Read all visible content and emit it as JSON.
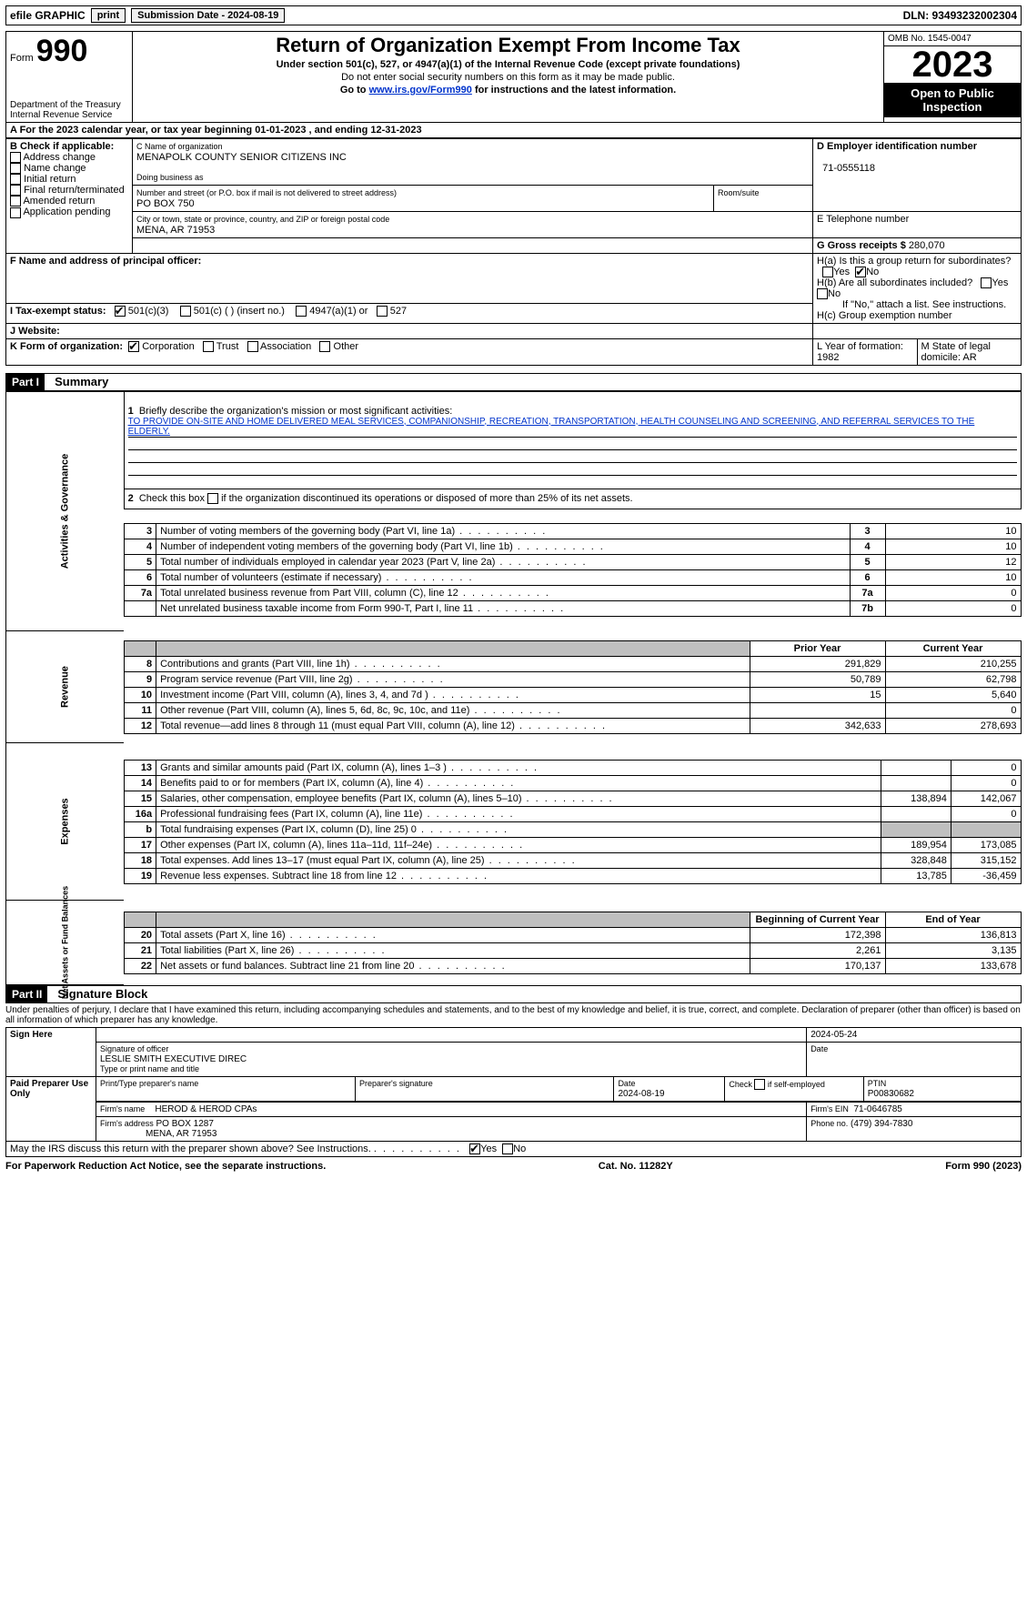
{
  "topbar": {
    "efile": "efile GRAPHIC",
    "print": "print",
    "submission_label": "Submission Date - 2024-08-19",
    "dln": "DLN: 93493232002304"
  },
  "header": {
    "form_label": "Form",
    "form_number": "990",
    "dept": "Department of the Treasury",
    "irs": "Internal Revenue Service",
    "title": "Return of Organization Exempt From Income Tax",
    "under": "Under section 501(c), 527, or 4947(a)(1) of the Internal Revenue Code (except private foundations)",
    "no_ssn": "Do not enter social security numbers on this form as it may be made public.",
    "goto_pre": "Go to ",
    "goto_link": "www.irs.gov/Form990",
    "goto_post": " for instructions and the latest information.",
    "omb": "OMB No. 1545-0047",
    "year": "2023",
    "open": "Open to Public Inspection"
  },
  "a_line": "A For the 2023 calendar year, or tax year beginning 01-01-2023   , and ending 12-31-2023",
  "boxB": {
    "title": "B Check if applicable:",
    "items": [
      "Address change",
      "Name change",
      "Initial return",
      "Final return/terminated",
      "Amended return",
      "Application pending"
    ]
  },
  "boxC": {
    "label": "C Name of organization",
    "name": "MENAPOLK COUNTY SENIOR CITIZENS INC",
    "dba": "Doing business as",
    "street_label": "Number and street (or P.O. box if mail is not delivered to street address)",
    "street": "PO BOX 750",
    "room_label": "Room/suite",
    "city_label": "City or town, state or province, country, and ZIP or foreign postal code",
    "city": "MENA, AR  71953"
  },
  "boxD": {
    "label": "D Employer identification number",
    "value": "71-0555118"
  },
  "boxE": {
    "label": "E Telephone number"
  },
  "boxG": {
    "label": "G Gross receipts $",
    "value": "280,070"
  },
  "boxF": {
    "label": "F  Name and address of principal officer:"
  },
  "boxH": {
    "a": "H(a)  Is this a group return for subordinates?",
    "b": "H(b)  Are all subordinates included?",
    "b_note": "If \"No,\" attach a list. See instructions.",
    "c": "H(c)  Group exemption number",
    "yes": "Yes",
    "no": "No"
  },
  "boxI": {
    "label": "I   Tax-exempt status:",
    "c3": "501(c)(3)",
    "c": "501(c) (  ) (insert no.)",
    "a1": "4947(a)(1) or",
    "s527": "527"
  },
  "boxJ": {
    "label": "J   Website:"
  },
  "boxK": {
    "label": "K Form of organization:",
    "corp": "Corporation",
    "trust": "Trust",
    "assoc": "Association",
    "other": "Other"
  },
  "boxL": {
    "label": "L Year of formation:",
    "value": "1982"
  },
  "boxM": {
    "label": "M State of legal domicile:",
    "value": "AR"
  },
  "part1": {
    "tag": "Part I",
    "title": "Summary"
  },
  "mission": {
    "label": "Briefly describe the organization's mission or most significant activities:",
    "text": "TO PROVIDE ON-SITE AND HOME DELIVERED MEAL SERVICES, COMPANIONSHIP, RECREATION, TRANSPORTATION, HEALTH COUNSELING AND SCREENING, AND REFERRAL SERVICES TO THE ELDERLY."
  },
  "line2": "Check this box      if the organization discontinued its operations or disposed of more than 25% of its net assets.",
  "gov_rows": [
    {
      "n": "3",
      "label": "Number of voting members of the governing body (Part VI, line 1a)",
      "numcol": "3",
      "val": "10"
    },
    {
      "n": "4",
      "label": "Number of independent voting members of the governing body (Part VI, line 1b)",
      "numcol": "4",
      "val": "10"
    },
    {
      "n": "5",
      "label": "Total number of individuals employed in calendar year 2023 (Part V, line 2a)",
      "numcol": "5",
      "val": "12"
    },
    {
      "n": "6",
      "label": "Total number of volunteers (estimate if necessary)",
      "numcol": "6",
      "val": "10"
    },
    {
      "n": "7a",
      "label": "Total unrelated business revenue from Part VIII, column (C), line 12",
      "numcol": "7a",
      "val": "0"
    },
    {
      "n": "",
      "label": "Net unrelated business taxable income from Form 990-T, Part I, line 11",
      "numcol": "7b",
      "val": "0"
    }
  ],
  "pycy_header": {
    "prior": "Prior Year",
    "current": "Current Year"
  },
  "rev_rows": [
    {
      "n": "8",
      "label": "Contributions and grants (Part VIII, line 1h)",
      "py": "291,829",
      "cy": "210,255"
    },
    {
      "n": "9",
      "label": "Program service revenue (Part VIII, line 2g)",
      "py": "50,789",
      "cy": "62,798"
    },
    {
      "n": "10",
      "label": "Investment income (Part VIII, column (A), lines 3, 4, and 7d )",
      "py": "15",
      "cy": "5,640"
    },
    {
      "n": "11",
      "label": "Other revenue (Part VIII, column (A), lines 5, 6d, 8c, 9c, 10c, and 11e)",
      "py": "",
      "cy": "0"
    },
    {
      "n": "12",
      "label": "Total revenue—add lines 8 through 11 (must equal Part VIII, column (A), line 12)",
      "py": "342,633",
      "cy": "278,693"
    }
  ],
  "exp_rows": [
    {
      "n": "13",
      "label": "Grants and similar amounts paid (Part IX, column (A), lines 1–3 )",
      "py": "",
      "cy": "0"
    },
    {
      "n": "14",
      "label": "Benefits paid to or for members (Part IX, column (A), line 4)",
      "py": "",
      "cy": "0"
    },
    {
      "n": "15",
      "label": "Salaries, other compensation, employee benefits (Part IX, column (A), lines 5–10)",
      "py": "138,894",
      "cy": "142,067"
    },
    {
      "n": "16a",
      "label": "Professional fundraising fees (Part IX, column (A), line 11e)",
      "py": "",
      "cy": "0"
    },
    {
      "n": "b",
      "label": "Total fundraising expenses (Part IX, column (D), line 25) 0",
      "py": "shade",
      "cy": "shade"
    },
    {
      "n": "17",
      "label": "Other expenses (Part IX, column (A), lines 11a–11d, 11f–24e)",
      "py": "189,954",
      "cy": "173,085"
    },
    {
      "n": "18",
      "label": "Total expenses. Add lines 13–17 (must equal Part IX, column (A), line 25)",
      "py": "328,848",
      "cy": "315,152"
    },
    {
      "n": "19",
      "label": "Revenue less expenses. Subtract line 18 from line 12",
      "py": "13,785",
      "cy": "-36,459"
    }
  ],
  "net_header": {
    "begin": "Beginning of Current Year",
    "end": "End of Year"
  },
  "net_rows": [
    {
      "n": "20",
      "label": "Total assets (Part X, line 16)",
      "py": "172,398",
      "cy": "136,813"
    },
    {
      "n": "21",
      "label": "Total liabilities (Part X, line 26)",
      "py": "2,261",
      "cy": "3,135"
    },
    {
      "n": "22",
      "label": "Net assets or fund balances. Subtract line 21 from line 20",
      "py": "170,137",
      "cy": "133,678"
    }
  ],
  "side_labels": {
    "gov": "Activities & Governance",
    "rev": "Revenue",
    "exp": "Expenses",
    "net": "Net Assets or Fund Balances"
  },
  "part2": {
    "tag": "Part II",
    "title": "Signature Block"
  },
  "perjury": "Under penalties of perjury, I declare that I have examined this return, including accompanying schedules and statements, and to the best of my knowledge and belief, it is true, correct, and complete. Declaration of preparer (other than officer) is based on all information of which preparer has any knowledge.",
  "sign": {
    "here": "Sign Here",
    "sig_label": "Signature of officer",
    "date_label": "Date",
    "date": "2024-05-24",
    "name": "LESLIE SMITH  EXECUTIVE DIREC",
    "name_label": "Type or print name and title"
  },
  "paid": {
    "title": "Paid Preparer Use Only",
    "p_name_label": "Print/Type preparer's name",
    "p_sig_label": "Preparer's signature",
    "p_date_label": "Date",
    "p_date": "2024-08-19",
    "check_label": "Check       if self-employed",
    "ptin_label": "PTIN",
    "ptin": "P00830682",
    "firm_name_label": "Firm's name",
    "firm_name": "HEROD & HEROD CPAs",
    "firm_ein_label": "Firm's EIN",
    "firm_ein": "71-0646785",
    "firm_addr_label": "Firm's address",
    "firm_addr1": "PO BOX 1287",
    "firm_addr2": "MENA, AR  71953",
    "phone_label": "Phone no.",
    "phone": "(479) 394-7830"
  },
  "discuss": "May the IRS discuss this return with the preparer shown above? See Instructions.",
  "footer": {
    "left": "For Paperwork Reduction Act Notice, see the separate instructions.",
    "mid": "Cat. No. 11282Y",
    "right": "Form 990 (2023)"
  }
}
